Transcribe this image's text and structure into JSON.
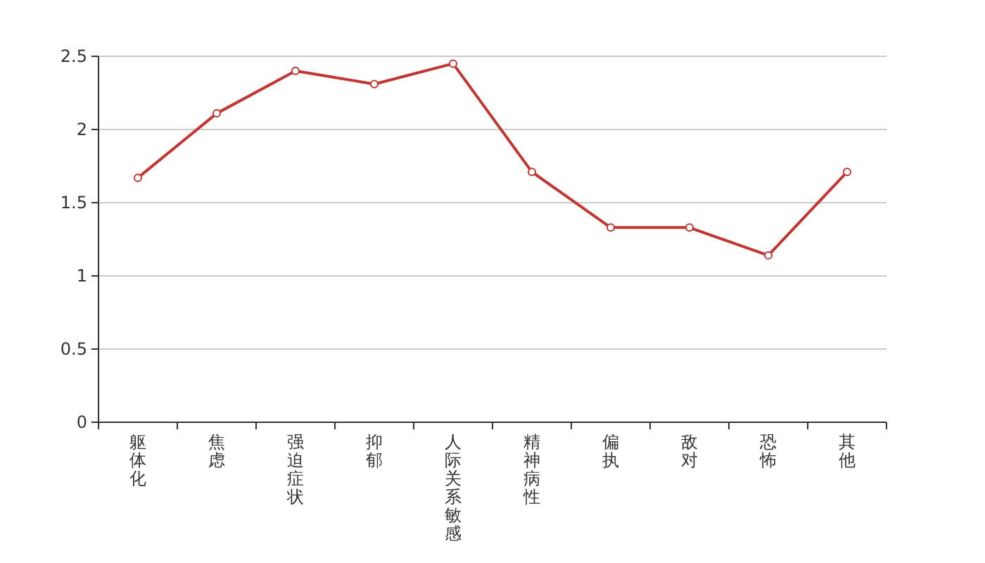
{
  "chart_data": {
    "type": "line",
    "categories": [
      "躯体化",
      "焦虑",
      "强迫症状",
      "抑郁",
      "人际关系敏感",
      "精神病性",
      "偏执",
      "敌对",
      "恐怖",
      "其他"
    ],
    "series": [
      {
        "color": "#c23531",
        "values": [
          1.67,
          2.11,
          2.4,
          2.31,
          2.45,
          1.71,
          1.33,
          1.33,
          1.14,
          1.71
        ]
      }
    ],
    "ylim": [
      0,
      2.5
    ],
    "yticks": [
      0,
      0.5,
      1,
      1.5,
      2,
      2.5
    ],
    "grid": "y",
    "marker": "circle",
    "line_style": "solid"
  }
}
